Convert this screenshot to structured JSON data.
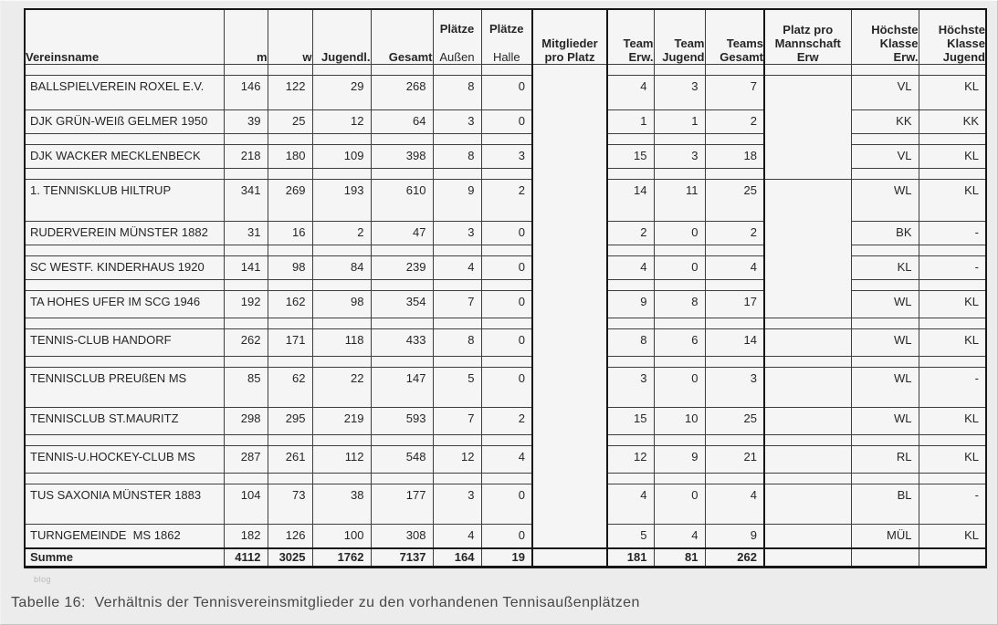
{
  "colors": {
    "background": "#ececec",
    "cell_background": "#f5f5f5",
    "grid_border": "#3e3e3e",
    "outer_border": "#161616",
    "text": "#262626",
    "caption_text": "#474747",
    "watermark_text": "#b8b8b8"
  },
  "watermark": "blog",
  "caption": "Tabelle 16:  Verhältnis der Tennisvereinsmitglieder zu den vorhandenen Tennisaußenplätzen",
  "table": {
    "header": {
      "vereinsname": "Vereinsname",
      "m": "m",
      "w": "w",
      "jugendl": "Jugendl.",
      "gesamt": "Gesamt",
      "plaetze_aussen": [
        "Plätze",
        "Außen"
      ],
      "plaetze_halle": [
        "Plätze",
        "Halle"
      ],
      "mitglieder": [
        "Mitglieder",
        "pro Platz"
      ],
      "team_erw": [
        "Team",
        "Erw."
      ],
      "team_jugend": [
        "Team",
        "Jugend"
      ],
      "teams_gesamt": [
        "Teams",
        "Gesamt"
      ],
      "platz_pro": [
        "Platz pro",
        "Mannschaft",
        "Erw"
      ],
      "hk_erw": [
        "Höchste",
        "Klasse",
        "Erw."
      ],
      "hk_jugend": [
        "Höchste",
        "Klasse",
        "Jugend"
      ]
    },
    "rows": [
      {
        "name": "BALLSPIELVEREIN ROXEL E.V.",
        "m": "146",
        "w": "122",
        "jugendl": "29",
        "gesamt": "268",
        "plaetze_aussen": "8",
        "plaetze_halle": "0",
        "team_erw": "4",
        "team_jugend": "3",
        "teams_gesamt": "7",
        "hk_erw": "VL",
        "hk_jugend": "KL"
      },
      {
        "name": "DJK GRÜN-WEIß GELMER 1950",
        "m": "39",
        "w": "25",
        "jugendl": "12",
        "gesamt": "64",
        "plaetze_aussen": "3",
        "plaetze_halle": "0",
        "team_erw": "1",
        "team_jugend": "1",
        "teams_gesamt": "2",
        "hk_erw": "KK",
        "hk_jugend": "KK"
      },
      {
        "name": "DJK WACKER MECKLENBECK",
        "m": "218",
        "w": "180",
        "jugendl": "109",
        "gesamt": "398",
        "plaetze_aussen": "8",
        "plaetze_halle": "3",
        "team_erw": "15",
        "team_jugend": "3",
        "teams_gesamt": "18",
        "hk_erw": "VL",
        "hk_jugend": "KL"
      },
      {
        "name": "1. TENNISKLUB HILTRUP",
        "m": "341",
        "w": "269",
        "jugendl": "193",
        "gesamt": "610",
        "plaetze_aussen": "9",
        "plaetze_halle": "2",
        "team_erw": "14",
        "team_jugend": "11",
        "teams_gesamt": "25",
        "hk_erw": "WL",
        "hk_jugend": "KL"
      },
      {
        "name": "RUDERVEREIN MÜNSTER 1882",
        "m": "31",
        "w": "16",
        "jugendl": "2",
        "gesamt": "47",
        "plaetze_aussen": "3",
        "plaetze_halle": "0",
        "team_erw": "2",
        "team_jugend": "0",
        "teams_gesamt": "2",
        "hk_erw": "BK",
        "hk_jugend": "-"
      },
      {
        "name": "SC WESTF. KINDERHAUS 1920",
        "m": "141",
        "w": "98",
        "jugendl": "84",
        "gesamt": "239",
        "plaetze_aussen": "4",
        "plaetze_halle": "0",
        "team_erw": "4",
        "team_jugend": "0",
        "teams_gesamt": "4",
        "hk_erw": "KL",
        "hk_jugend": "-"
      },
      {
        "name": "TA HOHES UFER IM SCG 1946",
        "m": "192",
        "w": "162",
        "jugendl": "98",
        "gesamt": "354",
        "plaetze_aussen": "7",
        "plaetze_halle": "0",
        "team_erw": "9",
        "team_jugend": "8",
        "teams_gesamt": "17",
        "hk_erw": "WL",
        "hk_jugend": "KL"
      },
      {
        "name": "TENNIS-CLUB HANDORF",
        "m": "262",
        "w": "171",
        "jugendl": "118",
        "gesamt": "433",
        "plaetze_aussen": "8",
        "plaetze_halle": "0",
        "team_erw": "8",
        "team_jugend": "6",
        "teams_gesamt": "14",
        "hk_erw": "WL",
        "hk_jugend": "KL"
      },
      {
        "name": "TENNISCLUB PREUßEN MS",
        "m": "85",
        "w": "62",
        "jugendl": "22",
        "gesamt": "147",
        "plaetze_aussen": "5",
        "plaetze_halle": "0",
        "team_erw": "3",
        "team_jugend": "0",
        "teams_gesamt": "3",
        "hk_erw": "WL",
        "hk_jugend": "-"
      },
      {
        "name": "TENNISCLUB ST.MAURITZ",
        "m": "298",
        "w": "295",
        "jugendl": "219",
        "gesamt": "593",
        "plaetze_aussen": "7",
        "plaetze_halle": "2",
        "team_erw": "15",
        "team_jugend": "10",
        "teams_gesamt": "25",
        "hk_erw": "WL",
        "hk_jugend": "KL"
      },
      {
        "name": "TENNIS-U.HOCKEY-CLUB MS",
        "m": "287",
        "w": "261",
        "jugendl": "112",
        "gesamt": "548",
        "plaetze_aussen": "12",
        "plaetze_halle": "4",
        "team_erw": "12",
        "team_jugend": "9",
        "teams_gesamt": "21",
        "hk_erw": "RL",
        "hk_jugend": "KL"
      },
      {
        "name": "TUS SAXONIA MÜNSTER 1883",
        "m": "104",
        "w": "73",
        "jugendl": "38",
        "gesamt": "177",
        "plaetze_aussen": "3",
        "plaetze_halle": "0",
        "team_erw": "4",
        "team_jugend": "0",
        "teams_gesamt": "4",
        "hk_erw": "BL",
        "hk_jugend": "-"
      },
      {
        "name": "TURNGEMEINDE  MS 1862",
        "m": "182",
        "w": "126",
        "jugendl": "100",
        "gesamt": "308",
        "plaetze_aussen": "4",
        "plaetze_halle": "0",
        "team_erw": "5",
        "team_jugend": "4",
        "teams_gesamt": "9",
        "hk_erw": "MÜL",
        "hk_jugend": "KL"
      }
    ],
    "summe": {
      "label": "Summe",
      "m": "4112",
      "w": "3025",
      "jugendl": "1762",
      "gesamt": "7137",
      "plaetze_aussen": "164",
      "plaetze_halle": "19",
      "team_erw": "181",
      "team_jugend": "81",
      "teams_gesamt": "262"
    }
  }
}
